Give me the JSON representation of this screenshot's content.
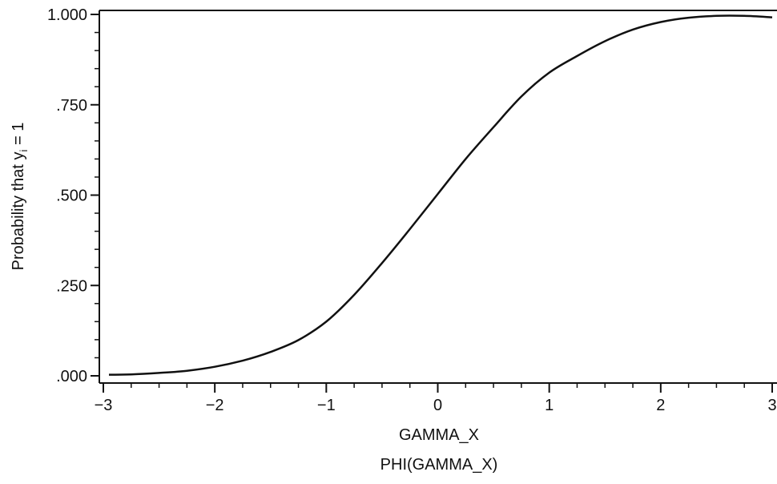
{
  "chart_data": {
    "type": "line",
    "title": "",
    "xlabel": "GAMMA_X",
    "ylabel": "Probability that y",
    "ylabel_subscript": "i",
    "ylabel_suffix": " = 1",
    "caption": "PHI(GAMMA_X)",
    "xlim": [
      -3,
      3
    ],
    "ylim": [
      0,
      1
    ],
    "x_ticks": [
      {
        "value": -3,
        "label": "−3"
      },
      {
        "value": -2,
        "label": "−2"
      },
      {
        "value": -1,
        "label": "−1"
      },
      {
        "value": 0,
        "label": "0"
      },
      {
        "value": 1,
        "label": "1"
      },
      {
        "value": 2,
        "label": "2"
      },
      {
        "value": 3,
        "label": "3"
      }
    ],
    "y_ticks": [
      {
        "value": 0.0,
        "label": ".000"
      },
      {
        "value": 0.25,
        "label": ".250"
      },
      {
        "value": 0.5,
        "label": ".500"
      },
      {
        "value": 0.75,
        "label": ".750"
      },
      {
        "value": 1.0,
        "label": "1.000"
      }
    ],
    "grid": false,
    "series": [
      {
        "color": "#111111",
        "x": [
          -2.95,
          -2.75,
          -2.5,
          -2.25,
          -2.0,
          -1.75,
          -1.5,
          -1.25,
          -1.0,
          -0.75,
          -0.5,
          -0.25,
          0.0,
          0.25,
          0.5,
          0.75,
          1.0,
          1.25,
          1.5,
          1.75,
          2.0,
          2.25,
          2.5,
          2.75,
          3.0
        ],
        "y": [
          0.003,
          0.004,
          0.008,
          0.014,
          0.025,
          0.042,
          0.066,
          0.099,
          0.15,
          0.224,
          0.312,
          0.406,
          0.503,
          0.6,
          0.688,
          0.773,
          0.839,
          0.885,
          0.926,
          0.958,
          0.979,
          0.991,
          0.996,
          0.996,
          0.992
        ]
      }
    ]
  }
}
